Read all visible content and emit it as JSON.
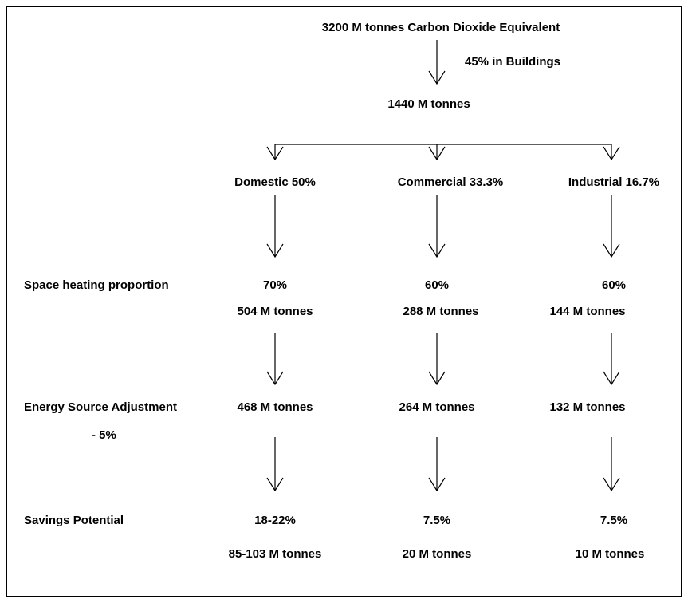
{
  "root": {
    "label": "3200 M tonnes Carbon Dioxide Equivalent",
    "edge_label": "45% in Buildings"
  },
  "buildings": {
    "label": "1440 M tonnes"
  },
  "rows": {
    "space_heating": "Space heating proportion",
    "energy_source": "Energy Source Adjustment",
    "energy_source_note": "- 5%",
    "savings": "Savings Potential"
  },
  "branches": [
    {
      "label": "Domestic 50%",
      "heating_share": "70%",
      "heating_total": "504 M tonnes",
      "adjusted": "468 M tonnes",
      "savings_share": "18-22%",
      "savings_total": "85-103 M tonnes"
    },
    {
      "label": "Commercial 33.3%",
      "heating_share": "60%",
      "heating_total": "288 M tonnes",
      "adjusted": "264 M tonnes",
      "savings_share": "7.5%",
      "savings_total": "20 M tonnes"
    },
    {
      "label": "Industrial 16.7%",
      "heating_share": "60%",
      "heating_total": "144 M tonnes",
      "adjusted": "132 M tonnes",
      "savings_share": "7.5%",
      "savings_total": "10 M tonnes"
    }
  ]
}
